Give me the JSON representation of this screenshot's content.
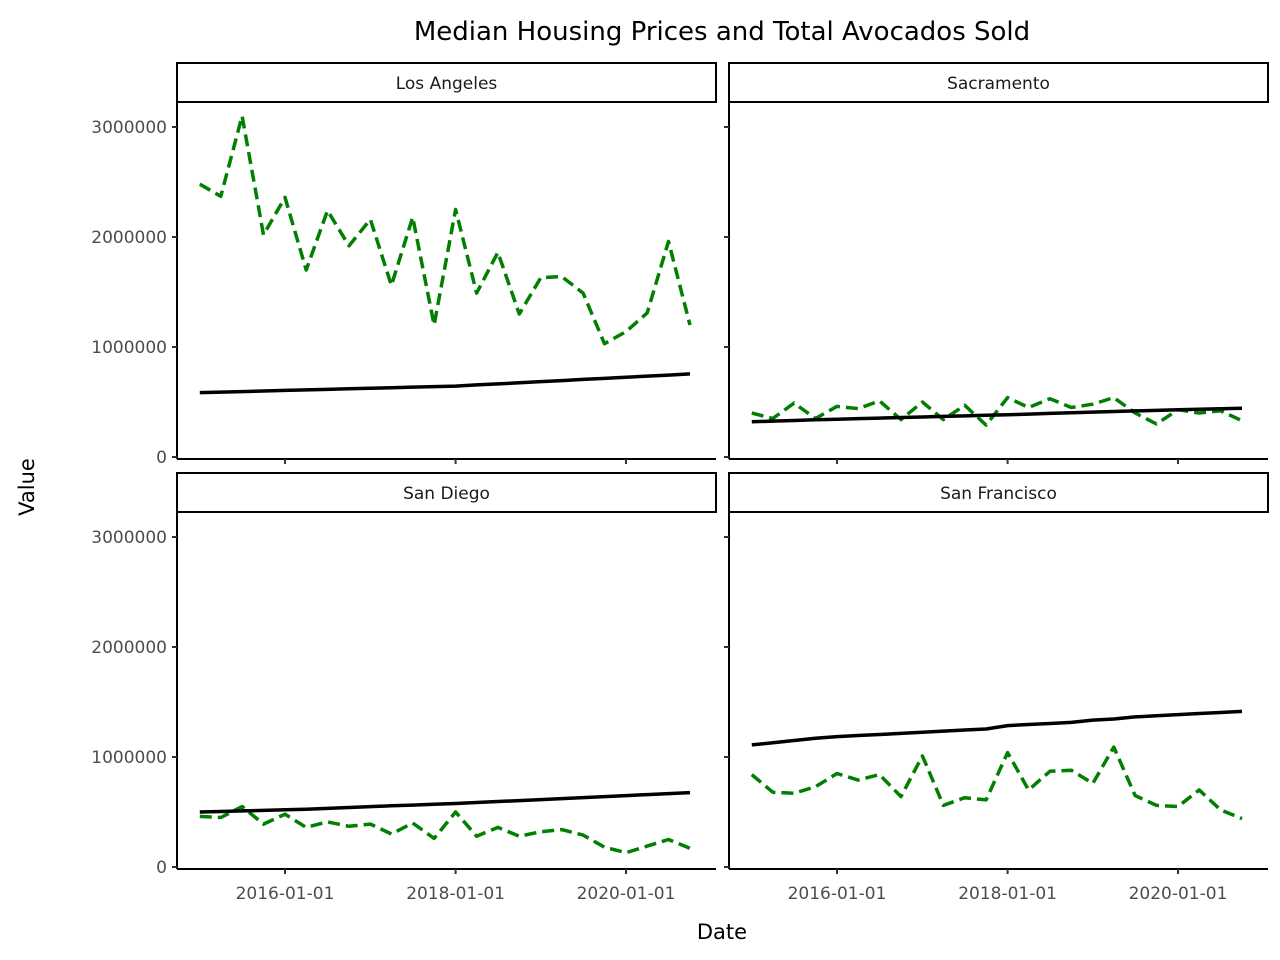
{
  "chart_data": {
    "type": "line",
    "title": "Median Housing Prices and Total Avocados Sold",
    "xlabel": "Date",
    "ylabel": "Value",
    "x_ticks": [
      "2016-01-01",
      "2018-01-01",
      "2020-01-01"
    ],
    "y_ticks": [
      "0",
      "1000000",
      "2000000",
      "3000000"
    ],
    "ylim": [
      0,
      3000000
    ],
    "xlim": [
      "2015-01-01",
      "2020-10-01"
    ],
    "grid": false,
    "legend": "none",
    "colors": {
      "avocados": "#007f00",
      "housing": "#000000"
    },
    "x": [
      "2015-01-01",
      "2015-04-01",
      "2015-07-01",
      "2015-10-01",
      "2016-01-01",
      "2016-04-01",
      "2016-07-01",
      "2016-10-01",
      "2017-01-01",
      "2017-04-01",
      "2017-07-01",
      "2017-10-01",
      "2018-01-01",
      "2018-04-01",
      "2018-07-01",
      "2018-10-01",
      "2019-01-01",
      "2019-04-01",
      "2019-07-01",
      "2019-10-01",
      "2020-01-01",
      "2020-04-01",
      "2020-07-01",
      "2020-10-01"
    ],
    "panels": [
      {
        "name": "Los Angeles",
        "series": [
          {
            "style": "dashed",
            "color": "#007f00",
            "values": [
              2480000,
              2370000,
              3100000,
              2020000,
              2360000,
              1700000,
              2240000,
              1920000,
              2160000,
              1560000,
              2180000,
              1200000,
              2250000,
              1490000,
              1860000,
              1300000,
              1630000,
              1640000,
              1490000,
              1030000,
              1140000,
              1310000,
              1960000,
              1200000
            ]
          },
          {
            "style": "solid",
            "color": "#000000",
            "values": [
              585000,
              590000,
              595000,
              600000,
              605000,
              610000,
              615000,
              620000,
              625000,
              630000,
              635000,
              640000,
              645000,
              655000,
              665000,
              675000,
              685000,
              695000,
              705000,
              715000,
              725000,
              735000,
              745000,
              755000
            ]
          }
        ]
      },
      {
        "name": "Sacramento",
        "series": [
          {
            "style": "dashed",
            "color": "#007f00",
            "values": [
              400000,
              350000,
              490000,
              350000,
              460000,
              440000,
              510000,
              340000,
              500000,
              340000,
              470000,
              290000,
              540000,
              450000,
              530000,
              450000,
              480000,
              540000,
              400000,
              300000,
              430000,
              400000,
              420000,
              330000
            ]
          },
          {
            "style": "solid",
            "color": "#000000",
            "values": [
              320000,
              326000,
              332000,
              338000,
              344000,
              349000,
              354000,
              359000,
              364000,
              369000,
              374000,
              379000,
              384000,
              390000,
              396000,
              402000,
              408000,
              414000,
              419000,
              424000,
              429000,
              434000,
              439000,
              444000
            ]
          }
        ]
      },
      {
        "name": "San Diego",
        "series": [
          {
            "style": "dashed",
            "color": "#007f00",
            "values": [
              460000,
              450000,
              550000,
              390000,
              480000,
              360000,
              410000,
              370000,
              390000,
              300000,
              400000,
              260000,
              500000,
              280000,
              360000,
              280000,
              320000,
              340000,
              290000,
              180000,
              130000,
              190000,
              250000,
              170000
            ]
          },
          {
            "style": "solid",
            "color": "#000000",
            "values": [
              500000,
              505000,
              510000,
              515000,
              520000,
              525000,
              533000,
              541000,
              549000,
              556000,
              563000,
              570000,
              577000,
              586000,
              595000,
              604000,
              613000,
              622000,
              631000,
              640000,
              649000,
              658000,
              667000,
              676000
            ]
          }
        ]
      },
      {
        "name": "San Francisco",
        "series": [
          {
            "style": "dashed",
            "color": "#007f00",
            "values": [
              840000,
              680000,
              670000,
              730000,
              850000,
              790000,
              840000,
              640000,
              1010000,
              560000,
              630000,
              610000,
              1040000,
              700000,
              870000,
              880000,
              760000,
              1090000,
              650000,
              560000,
              550000,
              700000,
              520000,
              440000
            ]
          },
          {
            "style": "solid",
            "color": "#000000",
            "values": [
              1110000,
              1130000,
              1150000,
              1170000,
              1185000,
              1195000,
              1205000,
              1215000,
              1225000,
              1235000,
              1245000,
              1255000,
              1285000,
              1295000,
              1305000,
              1315000,
              1335000,
              1345000,
              1365000,
              1375000,
              1385000,
              1395000,
              1405000,
              1415000
            ]
          }
        ]
      }
    ]
  }
}
